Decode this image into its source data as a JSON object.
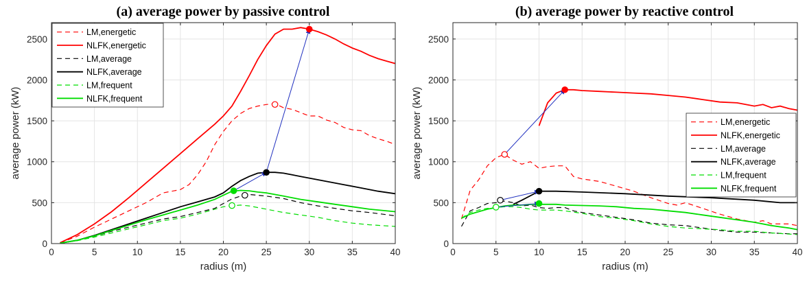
{
  "chart_data": [
    {
      "type": "line",
      "title": "(a) average power by passive control",
      "xlabel": "radius (m)",
      "ylabel": "average power (kW)",
      "xlim": [
        0,
        40
      ],
      "ylim": [
        0,
        2700
      ],
      "xticks": [
        0,
        5,
        10,
        15,
        20,
        25,
        30,
        35,
        40
      ],
      "yticks": [
        0,
        500,
        1000,
        1500,
        2000,
        2500
      ],
      "grid": true,
      "legend_position": "top-left",
      "series": [
        {
          "name": "LM,energetic",
          "color": "#ff0000",
          "style": "dashed",
          "x": [
            1,
            3,
            5,
            7,
            9,
            11,
            13,
            14,
            15,
            16,
            17,
            18,
            19,
            20,
            21,
            22,
            23,
            24,
            25,
            26,
            27,
            28,
            29,
            30,
            31,
            32,
            33,
            34,
            35,
            36,
            37,
            38,
            39,
            40
          ],
          "y": [
            10,
            90,
            200,
            300,
            400,
            500,
            620,
            640,
            660,
            720,
            840,
            1000,
            1210,
            1370,
            1500,
            1590,
            1650,
            1680,
            1700,
            1710,
            1660,
            1640,
            1600,
            1560,
            1560,
            1510,
            1480,
            1420,
            1390,
            1380,
            1320,
            1280,
            1250,
            1210
          ]
        },
        {
          "name": "NLFK,energetic",
          "color": "#ff0000",
          "style": "solid",
          "x": [
            1,
            3,
            5,
            7,
            9,
            11,
            13,
            15,
            17,
            19,
            20,
            21,
            22,
            23,
            24,
            25,
            26,
            27,
            28,
            29,
            30,
            31,
            32,
            33,
            34,
            35,
            36,
            37,
            38,
            39,
            40
          ],
          "y": [
            10,
            110,
            240,
            390,
            560,
            740,
            920,
            1100,
            1280,
            1460,
            1560,
            1680,
            1860,
            2050,
            2250,
            2420,
            2560,
            2620,
            2620,
            2640,
            2620,
            2590,
            2550,
            2500,
            2440,
            2390,
            2350,
            2300,
            2260,
            2230,
            2200
          ]
        },
        {
          "name": "LM,average",
          "color": "#000000",
          "style": "dashed",
          "x": [
            1,
            3,
            5,
            7,
            9,
            11,
            13,
            15,
            17,
            19,
            20,
            21,
            22,
            23,
            24,
            25,
            27,
            29,
            31,
            33,
            35,
            37,
            40
          ],
          "y": [
            5,
            40,
            90,
            150,
            200,
            250,
            300,
            330,
            380,
            430,
            490,
            545,
            580,
            600,
            590,
            580,
            550,
            500,
            460,
            430,
            400,
            380,
            340
          ]
        },
        {
          "name": "NLFK,average",
          "color": "#000000",
          "style": "solid",
          "x": [
            1,
            3,
            5,
            7,
            9,
            11,
            13,
            15,
            17,
            19,
            20,
            21,
            22,
            23,
            24,
            25,
            26,
            27,
            28,
            29,
            30,
            32,
            34,
            36,
            38,
            40
          ],
          "y": [
            5,
            40,
            100,
            170,
            240,
            310,
            380,
            450,
            510,
            570,
            620,
            700,
            770,
            820,
            860,
            870,
            870,
            860,
            840,
            820,
            800,
            760,
            720,
            680,
            640,
            610
          ]
        },
        {
          "name": "LM,frequent",
          "color": "#00dd00",
          "style": "dashed",
          "x": [
            1,
            3,
            5,
            7,
            9,
            11,
            13,
            15,
            17,
            19,
            20,
            21,
            22,
            23,
            24,
            25,
            27,
            29,
            31,
            33,
            35,
            37,
            40
          ],
          "y": [
            5,
            35,
            80,
            130,
            180,
            230,
            280,
            310,
            360,
            420,
            450,
            460,
            470,
            460,
            440,
            420,
            380,
            350,
            320,
            280,
            250,
            230,
            210
          ]
        },
        {
          "name": "NLFK,frequent",
          "color": "#00dd00",
          "style": "solid",
          "x": [
            1,
            3,
            5,
            7,
            9,
            11,
            13,
            15,
            17,
            19,
            20,
            21,
            22,
            23,
            24,
            25,
            27,
            29,
            31,
            33,
            35,
            37,
            40
          ],
          "y": [
            5,
            40,
            95,
            160,
            225,
            290,
            350,
            410,
            470,
            540,
            590,
            640,
            650,
            645,
            630,
            620,
            580,
            540,
            510,
            480,
            450,
            420,
            390
          ]
        }
      ],
      "markers": [
        {
          "series": "LM,energetic",
          "x": 26,
          "y": 1700,
          "filled": false,
          "color": "#ff0000"
        },
        {
          "series": "NLFK,energetic",
          "x": 30,
          "y": 2620,
          "filled": true,
          "color": "#ff0000"
        },
        {
          "series": "LM,average",
          "x": 22.5,
          "y": 590,
          "filled": false,
          "color": "#000000"
        },
        {
          "series": "NLFK,average",
          "x": 25,
          "y": 870,
          "filled": true,
          "color": "#000000"
        },
        {
          "series": "LM,frequent",
          "x": 21,
          "y": 465,
          "filled": false,
          "color": "#00dd00"
        },
        {
          "series": "NLFK,frequent",
          "x": 21.2,
          "y": 645,
          "filled": true,
          "color": "#00dd00"
        }
      ],
      "arrows": [
        {
          "from": [
            21.2,
            645
          ],
          "to": [
            25,
            870
          ]
        },
        {
          "from": [
            25,
            870
          ],
          "to": [
            30,
            2620
          ]
        }
      ]
    },
    {
      "type": "line",
      "title": "(b) average power by reactive control",
      "xlabel": "radius (m)",
      "ylabel": "average power (kW)",
      "xlim": [
        0,
        40
      ],
      "ylim": [
        0,
        2700
      ],
      "xticks": [
        0,
        5,
        10,
        15,
        20,
        25,
        30,
        35,
        40
      ],
      "yticks": [
        0,
        500,
        1000,
        1500,
        2000,
        2500
      ],
      "grid": true,
      "legend_position": "right",
      "series": [
        {
          "name": "LM,energetic",
          "color": "#ff0000",
          "style": "dashed",
          "x": [
            1,
            2,
            3,
            4,
            5,
            6,
            7,
            8,
            9,
            10,
            11,
            12,
            13,
            14,
            15,
            17,
            19,
            21,
            23,
            25,
            26,
            27,
            29,
            31,
            33,
            35,
            36,
            37,
            39,
            40
          ],
          "y": [
            300,
            650,
            780,
            950,
            1050,
            1090,
            1020,
            970,
            1000,
            920,
            940,
            950,
            950,
            820,
            790,
            760,
            700,
            640,
            560,
            490,
            470,
            500,
            430,
            360,
            300,
            260,
            280,
            240,
            240,
            220
          ]
        },
        {
          "name": "NLFK,energetic",
          "color": "#ff0000",
          "style": "solid",
          "x": [
            10,
            11,
            12,
            13,
            14,
            15,
            17,
            19,
            21,
            23,
            25,
            27,
            29,
            31,
            33,
            34,
            35,
            36,
            37,
            38,
            39,
            40
          ],
          "y": [
            1440,
            1720,
            1840,
            1880,
            1880,
            1870,
            1860,
            1850,
            1840,
            1830,
            1810,
            1790,
            1760,
            1730,
            1720,
            1700,
            1680,
            1700,
            1660,
            1680,
            1650,
            1630
          ]
        },
        {
          "name": "LM,average",
          "color": "#000000",
          "style": "dashed",
          "x": [
            1,
            2,
            3,
            4,
            5,
            6,
            7,
            8,
            9,
            10,
            11,
            12,
            13,
            14,
            15,
            17,
            19,
            21,
            23,
            25,
            27,
            29,
            31,
            33,
            35,
            37,
            39,
            40
          ],
          "y": [
            210,
            400,
            440,
            490,
            500,
            520,
            500,
            460,
            470,
            440,
            430,
            440,
            440,
            400,
            380,
            350,
            320,
            290,
            250,
            230,
            220,
            190,
            160,
            140,
            140,
            130,
            120,
            120
          ]
        },
        {
          "name": "NLFK,average",
          "color": "#000000",
          "style": "solid",
          "x": [
            7,
            8,
            10,
            12,
            15,
            20,
            25,
            30,
            35,
            38,
            40
          ],
          "y": [
            480,
            530,
            640,
            640,
            630,
            610,
            580,
            560,
            530,
            500,
            500
          ]
        },
        {
          "name": "LM,frequent",
          "color": "#00dd00",
          "style": "dashed",
          "x": [
            1,
            2,
            3,
            4,
            5,
            6,
            7,
            8,
            9,
            10,
            11,
            12,
            13,
            15,
            17,
            19,
            21,
            23,
            25,
            27,
            29,
            31,
            33,
            35,
            37,
            40
          ],
          "y": [
            310,
            380,
            410,
            430,
            440,
            450,
            450,
            440,
            420,
            410,
            410,
            410,
            400,
            370,
            330,
            310,
            280,
            240,
            210,
            190,
            180,
            170,
            150,
            150,
            130,
            110
          ]
        },
        {
          "name": "NLFK,frequent",
          "color": "#00dd00",
          "style": "solid",
          "x": [
            1,
            2,
            3,
            4,
            5,
            6,
            7,
            8,
            9,
            10,
            11,
            12,
            13,
            15,
            17,
            19,
            21,
            23,
            25,
            27,
            29,
            31,
            33,
            35,
            37,
            39,
            40
          ],
          "y": [
            310,
            360,
            390,
            420,
            440,
            460,
            470,
            470,
            480,
            480,
            480,
            480,
            470,
            465,
            460,
            450,
            430,
            420,
            400,
            380,
            350,
            320,
            290,
            260,
            220,
            190,
            170
          ]
        }
      ],
      "markers": [
        {
          "series": "LM,energetic",
          "x": 6,
          "y": 1090,
          "filled": false,
          "color": "#ff0000"
        },
        {
          "series": "NLFK,energetic",
          "x": 13,
          "y": 1880,
          "filled": true,
          "color": "#ff0000"
        },
        {
          "series": "LM,average",
          "x": 5.5,
          "y": 530,
          "filled": false,
          "color": "#000000"
        },
        {
          "series": "NLFK,average",
          "x": 10,
          "y": 640,
          "filled": true,
          "color": "#000000"
        },
        {
          "series": "LM,frequent",
          "x": 5,
          "y": 445,
          "filled": false,
          "color": "#00dd00"
        },
        {
          "series": "NLFK,frequent",
          "x": 10,
          "y": 490,
          "filled": true,
          "color": "#00dd00"
        }
      ],
      "arrows": [
        {
          "from": [
            6,
            1090
          ],
          "to": [
            13,
            1880
          ]
        },
        {
          "from": [
            5.5,
            530
          ],
          "to": [
            10,
            640
          ]
        },
        {
          "from": [
            5,
            445
          ],
          "to": [
            10,
            490
          ]
        }
      ]
    }
  ]
}
